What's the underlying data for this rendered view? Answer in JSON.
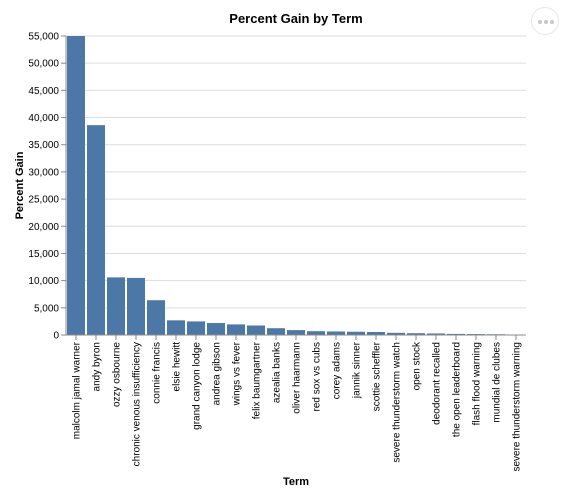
{
  "chart_data": {
    "type": "bar",
    "title": "Percent Gain by Term",
    "xlabel": "Term",
    "ylabel": "Percent Gain",
    "ylim": [
      0,
      55000
    ],
    "y_ticks": [
      0,
      5000,
      10000,
      15000,
      20000,
      25000,
      30000,
      35000,
      40000,
      45000,
      50000,
      55000
    ],
    "y_tick_labels": [
      "0",
      "5,000",
      "10,000",
      "15,000",
      "20,000",
      "25,000",
      "30,000",
      "35,000",
      "40,000",
      "45,000",
      "50,000",
      "55,000"
    ],
    "grid": true,
    "legend": "none",
    "bar_color": "#4c78a8",
    "categories": [
      "malcolm jamal warner",
      "andy byron",
      "ozzy osbourne",
      "chronic venous insufficiency",
      "connie francis",
      "elsie hewitt",
      "grand canyon lodge",
      "andrea gibson",
      "wings vs fever",
      "felix baumgartner",
      "azealia banks",
      "oliver haarmann",
      "red sox vs cubs",
      "corey adams",
      "jannik sinner",
      "scottie scheffler",
      "severe thunderstorm watch",
      "open stock",
      "deodorant recalled",
      "the open leaderboard",
      "flash flood warning",
      "mundial de clubes",
      "severe thunderstorm warning"
    ],
    "values": [
      55000,
      38600,
      10600,
      10500,
      6400,
      2700,
      2500,
      2200,
      1950,
      1750,
      1250,
      900,
      700,
      650,
      600,
      550,
      400,
      330,
      280,
      200,
      170,
      140,
      90
    ]
  },
  "menu": {
    "icon": "ellipsis-icon"
  }
}
